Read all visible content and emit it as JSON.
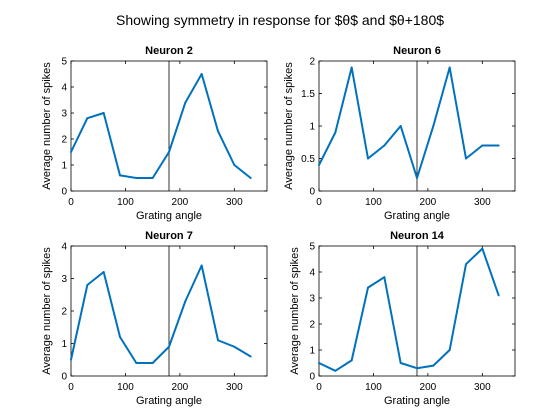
{
  "figure_title": "Showing symmetry in response for $θ$ and $θ+180$",
  "colors": {
    "line": "#0072BD",
    "axis": "#000000",
    "background": "#ffffff"
  },
  "chart_data": [
    {
      "type": "line",
      "title": "Neuron 2",
      "xlabel": "Grating angle",
      "ylabel": "Average number of spikes",
      "xlim": [
        0,
        360
      ],
      "ylim": [
        0,
        5
      ],
      "xticks": [
        0,
        100,
        200,
        300
      ],
      "yticks": [
        0,
        1,
        2,
        3,
        4,
        5
      ],
      "ytick_labels": [
        "0",
        "1",
        "2",
        "3",
        "4",
        "5"
      ],
      "vline": 180,
      "grid": false,
      "x": [
        0,
        30,
        60,
        90,
        120,
        150,
        180,
        210,
        240,
        270,
        300,
        330
      ],
      "values": [
        1.5,
        2.8,
        3.0,
        0.6,
        0.5,
        0.5,
        1.5,
        3.4,
        4.5,
        2.3,
        1.0,
        0.5
      ]
    },
    {
      "type": "line",
      "title": "Neuron 6",
      "xlabel": "Grating angle",
      "ylabel": "Average number of spikes",
      "xlim": [
        0,
        360
      ],
      "ylim": [
        0,
        2
      ],
      "xticks": [
        0,
        100,
        200,
        300
      ],
      "yticks": [
        0,
        0.5,
        1,
        1.5,
        2
      ],
      "ytick_labels": [
        "0",
        "0.5",
        "1",
        "1.5",
        "2"
      ],
      "vline": 180,
      "grid": false,
      "x": [
        0,
        30,
        60,
        90,
        120,
        150,
        180,
        210,
        240,
        270,
        300,
        330
      ],
      "values": [
        0.4,
        0.9,
        1.9,
        0.5,
        0.7,
        1.0,
        0.2,
        1.0,
        1.9,
        0.5,
        0.7,
        0.7
      ]
    },
    {
      "type": "line",
      "title": "Neuron 7",
      "xlabel": "Grating angle",
      "ylabel": "Average number of spikes",
      "xlim": [
        0,
        360
      ],
      "ylim": [
        0,
        4
      ],
      "xticks": [
        0,
        100,
        200,
        300
      ],
      "yticks": [
        0,
        1,
        2,
        3,
        4
      ],
      "ytick_labels": [
        "0",
        "1",
        "2",
        "3",
        "4"
      ],
      "vline": 180,
      "grid": false,
      "x": [
        0,
        30,
        60,
        90,
        120,
        150,
        180,
        210,
        240,
        270,
        300,
        330
      ],
      "values": [
        0.5,
        2.8,
        3.2,
        1.2,
        0.4,
        0.4,
        0.9,
        2.3,
        3.4,
        1.1,
        0.9,
        0.6
      ]
    },
    {
      "type": "line",
      "title": "Neuron 14",
      "xlabel": "Grating angle",
      "ylabel": "Average number of spikes",
      "xlim": [
        0,
        360
      ],
      "ylim": [
        0,
        5
      ],
      "xticks": [
        0,
        100,
        200,
        300
      ],
      "yticks": [
        0,
        1,
        2,
        3,
        4,
        5
      ],
      "ytick_labels": [
        "0",
        "1",
        "2",
        "3",
        "4",
        "5"
      ],
      "vline": 180,
      "grid": false,
      "x": [
        0,
        30,
        60,
        90,
        120,
        150,
        180,
        210,
        240,
        270,
        300,
        330
      ],
      "values": [
        0.5,
        0.2,
        0.6,
        3.4,
        3.8,
        0.5,
        0.3,
        0.4,
        1.0,
        4.3,
        4.9,
        3.1
      ]
    }
  ]
}
